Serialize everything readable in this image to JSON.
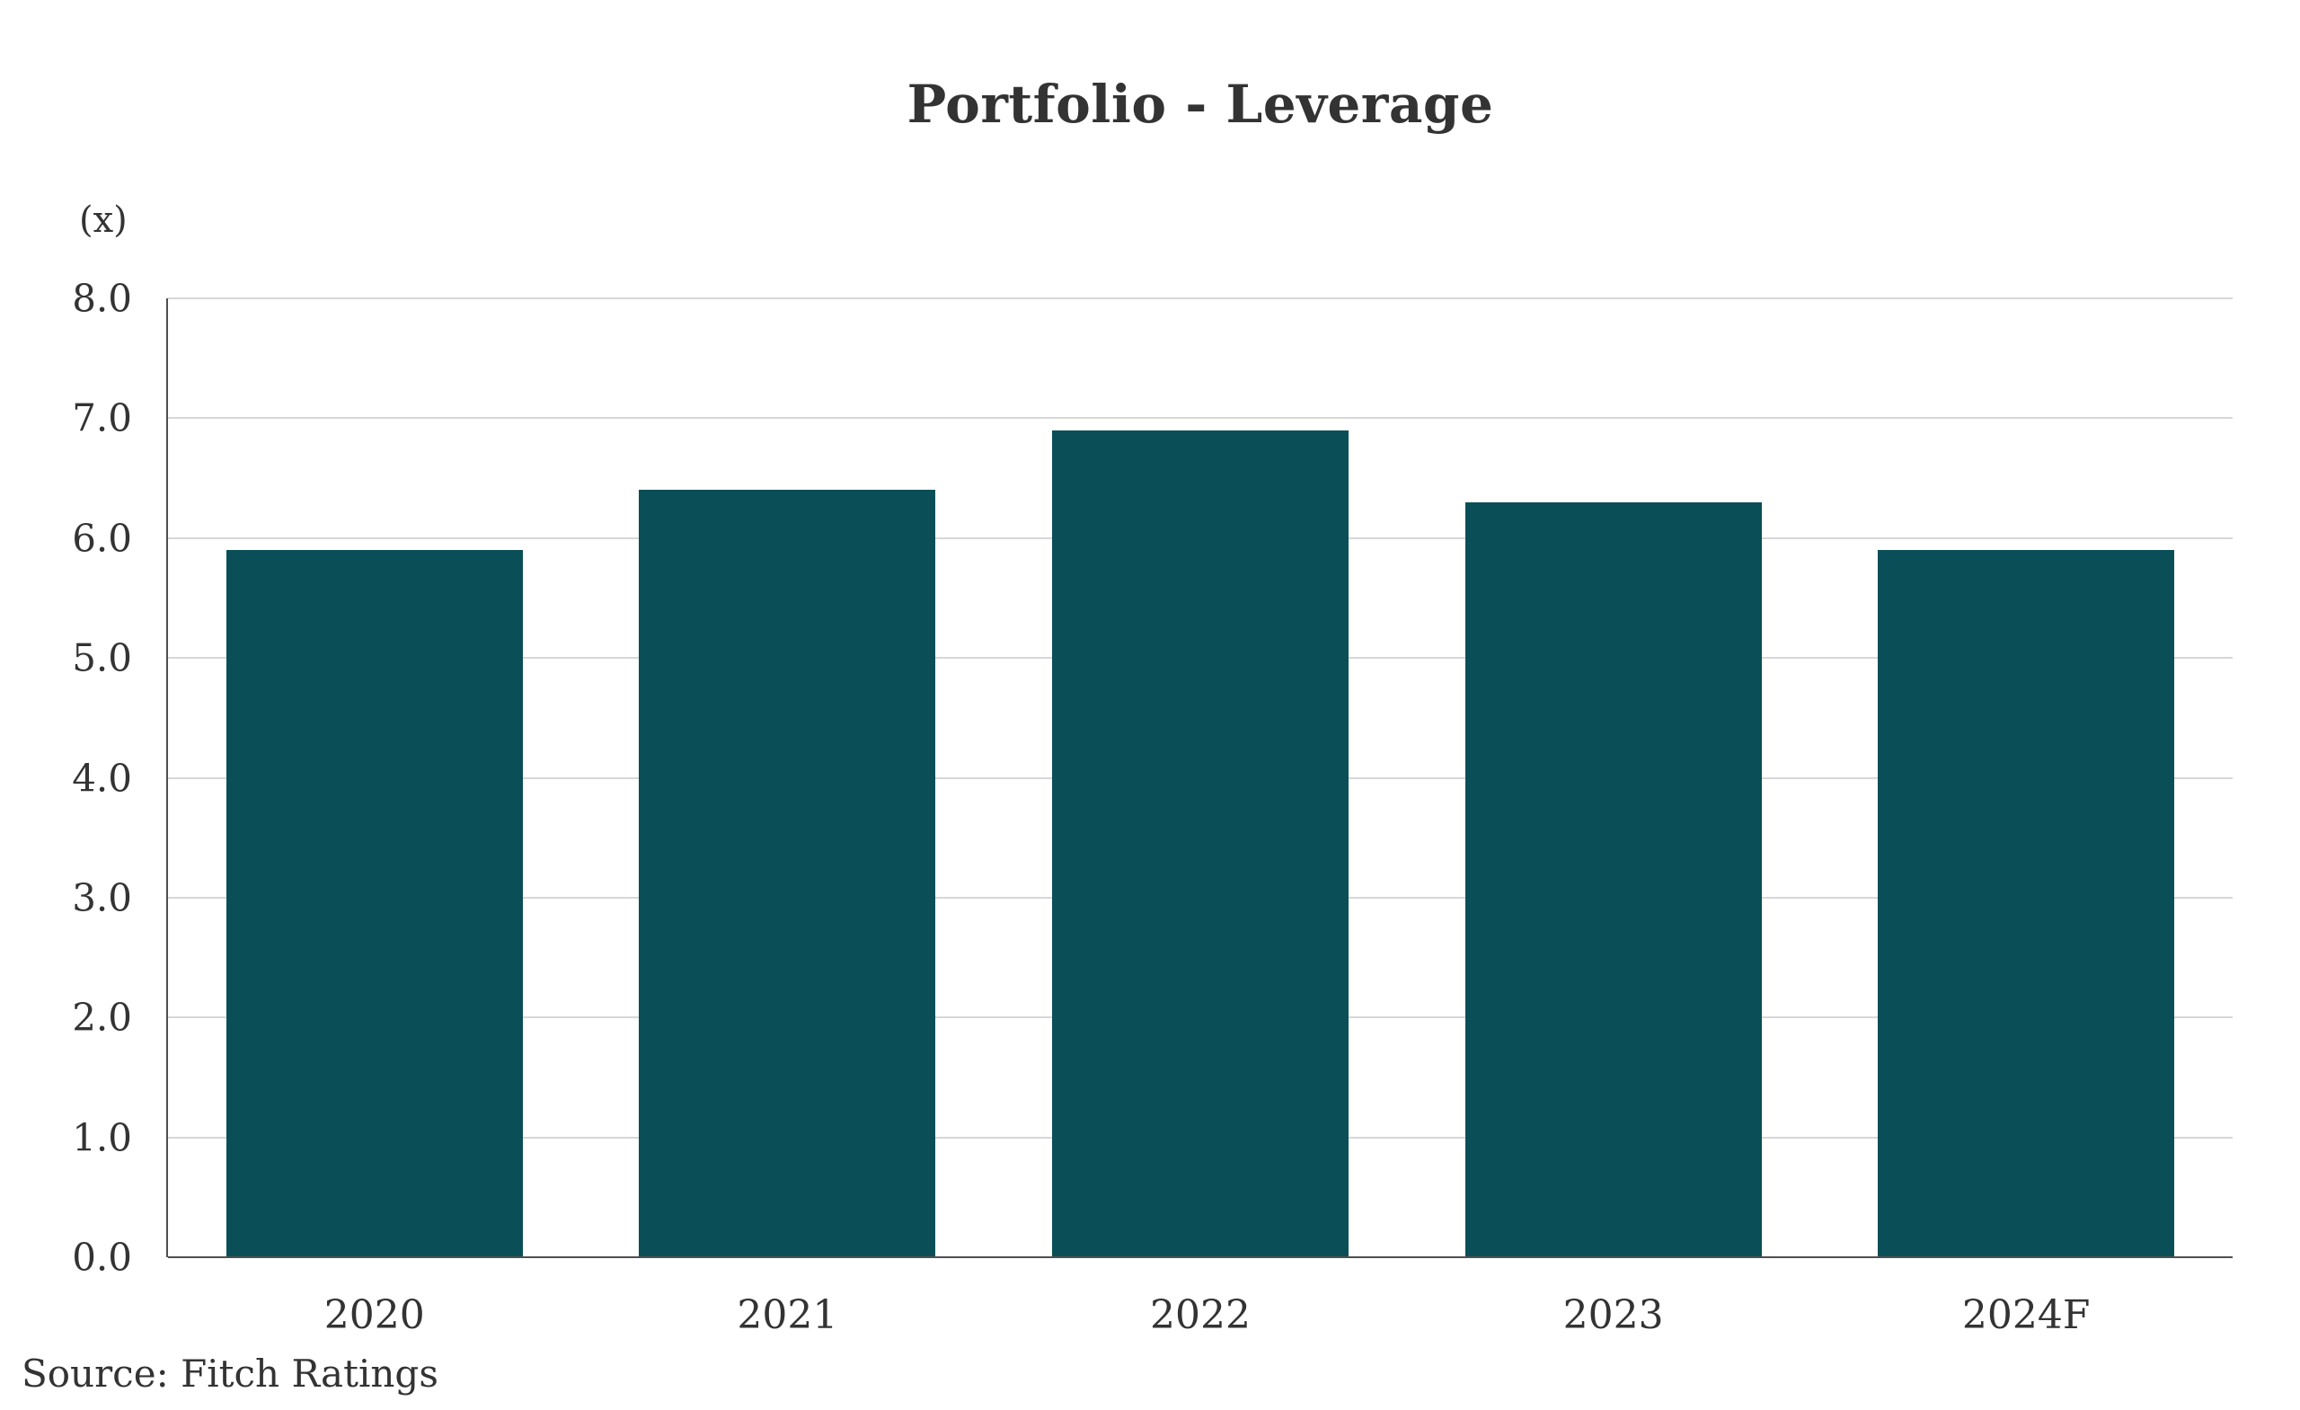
{
  "title": "Portfolio - Leverage",
  "unit_label": "(x)",
  "source": "Source: Fitch Ratings",
  "colors": {
    "bar": "#0a4f57",
    "gridline": "#d7d7d7",
    "axis": "#4f4f4f",
    "text": "#333333",
    "background": "#ffffff"
  },
  "chart_data": {
    "type": "bar",
    "title": "Portfolio - Leverage",
    "categories": [
      "2020",
      "2021",
      "2022",
      "2023",
      "2024F"
    ],
    "values": [
      5.9,
      6.4,
      6.9,
      6.3,
      5.9
    ],
    "xlabel": "",
    "ylabel": "(x)",
    "ylim": [
      0,
      8
    ],
    "ytick_step": 1.0,
    "ytick_labels": [
      "0.0",
      "1.0",
      "2.0",
      "3.0",
      "4.0",
      "5.0",
      "6.0",
      "7.0",
      "8.0"
    ],
    "grid": true,
    "legend": false,
    "bar_color": "#0a4f57"
  }
}
